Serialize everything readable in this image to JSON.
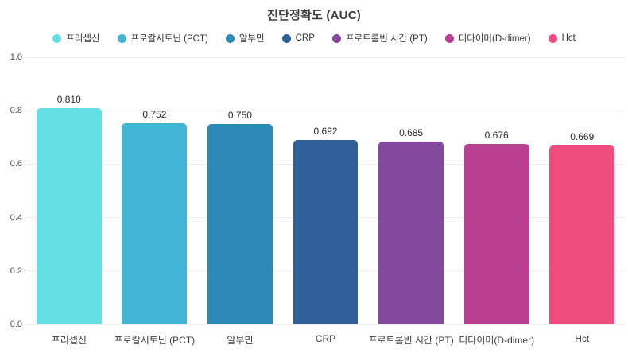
{
  "title": "진단정확도 (AUC)",
  "chart_data": {
    "type": "bar",
    "title": "진단정확도 (AUC)",
    "categories": [
      "프리셉신",
      "프로칼시토닌 (PCT)",
      "알부민",
      "CRP",
      "프로트롬빈 시간 (PT)",
      "디다이머(D-dimer)",
      "Hct"
    ],
    "values": [
      0.81,
      0.752,
      0.75,
      0.692,
      0.685,
      0.676,
      0.669
    ],
    "value_labels": [
      "0.810",
      "0.752",
      "0.750",
      "0.692",
      "0.685",
      "0.676",
      "0.669"
    ],
    "colors": [
      "#66DFE4",
      "#42B4D5",
      "#2D89B8",
      "#305F9B",
      "#84489C",
      "#BA3F90",
      "#EF4D7E"
    ],
    "legend": [
      "프리셉신",
      "프로칼시토닌 (PCT)",
      "알부민",
      "CRP",
      "프로트롬빈 시간 (PT)",
      "디다이머(D-dimer)",
      "Hct"
    ],
    "legend_position": "top",
    "grid": true,
    "xlabel": "",
    "ylabel": "",
    "ylim": [
      0.0,
      1.0
    ],
    "y_ticks": [
      0.0,
      0.2,
      0.4,
      0.6,
      0.8,
      1.0
    ],
    "y_tick_labels": [
      "0.0",
      "0.2",
      "0.4",
      "0.6",
      "0.8",
      "1.0"
    ],
    "grid_color": "#ececec",
    "background_color": "#ffffff"
  }
}
